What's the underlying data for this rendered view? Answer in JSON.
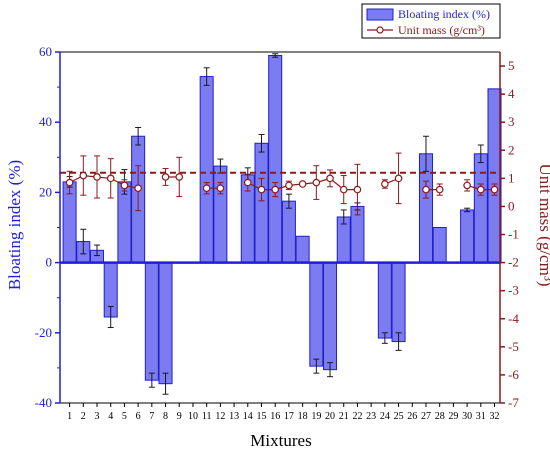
{
  "chart_data": {
    "type": "bar",
    "xlabel": "Mixtures",
    "ylabel": "Bloating index (%)",
    "y2label": "Unit mass (g/cm³)",
    "categories": [
      "1",
      "2",
      "3",
      "4",
      "5",
      "6",
      "7",
      "8",
      "9",
      "10",
      "11",
      "12",
      "13",
      "14",
      "15",
      "16",
      "17",
      "18",
      "19",
      "20",
      "21",
      "22",
      "23",
      "24",
      "25",
      "26",
      "27",
      "28",
      "29",
      "30",
      "31",
      "32"
    ],
    "ylim": [
      -40,
      60
    ],
    "y2lim": [
      -7,
      5.5
    ],
    "yticks": [
      "-40",
      "-20",
      "0",
      "20",
      "40",
      "60"
    ],
    "y2ticks": [
      "-7",
      "-6",
      "-5",
      "-4",
      "-3",
      "-2",
      "-1",
      "0",
      "1",
      "2",
      "3",
      "4",
      "5"
    ],
    "series": [
      {
        "name": "Bloating index (%)",
        "type": "bar",
        "axis": "left",
        "values": [
          23,
          6,
          3.5,
          -15.5,
          23,
          36,
          -33.5,
          -34.5,
          null,
          null,
          53,
          27.5,
          null,
          25,
          34,
          59,
          17.5,
          7.5,
          -29.5,
          -30.5,
          13,
          16,
          null,
          -21.5,
          -22.5,
          null,
          31,
          10,
          null,
          15,
          31,
          49.5
        ],
        "errors": [
          1.5,
          3.5,
          1.5,
          3,
          3.5,
          2.5,
          2,
          3,
          0,
          0,
          2.5,
          2,
          0,
          2,
          2.5,
          0.5,
          2,
          0,
          2,
          2,
          2,
          1,
          0,
          1.5,
          2.5,
          0,
          5,
          0,
          0,
          0.5,
          2.5,
          0
        ]
      },
      {
        "name": "Unit mass (g/cm³)",
        "type": "line",
        "axis": "right",
        "values": [
          0.85,
          1.1,
          1.05,
          1.0,
          0.75,
          0.65,
          null,
          1.05,
          1.05,
          null,
          0.65,
          0.65,
          null,
          0.85,
          0.6,
          0.6,
          0.75,
          0.8,
          0.85,
          1.0,
          0.6,
          0.6,
          null,
          0.8,
          1.0,
          null,
          0.6,
          0.6,
          null,
          0.75,
          0.6,
          0.6
        ],
        "errors": [
          0.4,
          0.7,
          0.75,
          0.7,
          0.2,
          0.8,
          0,
          0.3,
          0.7,
          0,
          0.2,
          0.2,
          0,
          0.3,
          0.4,
          0.25,
          0.15,
          0,
          0.6,
          0.3,
          0.5,
          0.9,
          0,
          0.15,
          0.9,
          0,
          0.3,
          0.2,
          0,
          0.2,
          0.2,
          0.2
        ]
      }
    ],
    "reference_line": {
      "axis": "right",
      "value": 1.2,
      "style": "dashed"
    },
    "legend_position": "top-right",
    "colors": {
      "bar_fill": "#7b7bf2",
      "bar_stroke": "#2020c8",
      "left_axis": "#1f1fd9",
      "right_axis": "#8b1a1a",
      "line": "#8b1a1a",
      "error_bar": "#1a1a1a"
    }
  }
}
